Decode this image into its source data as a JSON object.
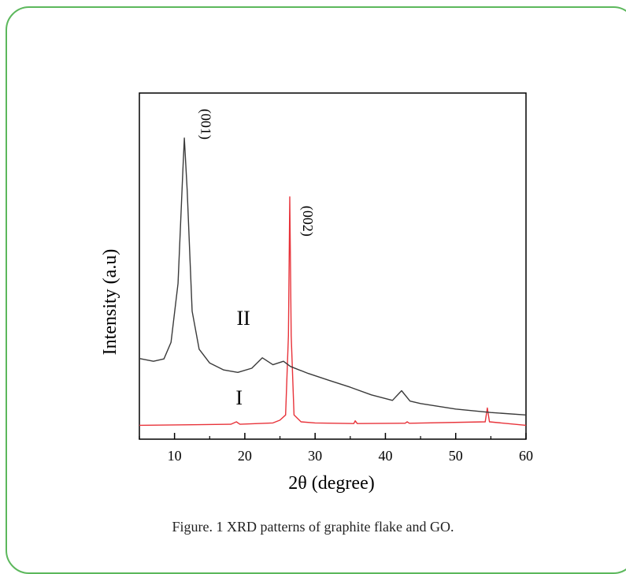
{
  "caption": "Figure. 1 XRD patterns of graphite flake and GO.",
  "colors": {
    "frame": "#5cb85c",
    "series_I": "#e8333a",
    "series_II": "#3a3a3a"
  },
  "chart_data": {
    "type": "line",
    "xlabel": "2θ (degree)",
    "ylabel": "Intensity (a.u)",
    "xlim": [
      5,
      60
    ],
    "xticks": [
      10,
      20,
      30,
      40,
      50,
      60
    ],
    "yticks_shown": false,
    "grid": false,
    "annotations": [
      {
        "text": "(001)",
        "x": 13.8,
        "y": 0.91
      },
      {
        "text": "(002)",
        "x": 28.3,
        "y": 0.63
      }
    ],
    "series": [
      {
        "name": "I",
        "label_at": {
          "x": 19.2,
          "y": 0.1
        },
        "points": [
          [
            5,
            0.04
          ],
          [
            18,
            0.043
          ],
          [
            18.8,
            0.05
          ],
          [
            19.3,
            0.043
          ],
          [
            24,
            0.047
          ],
          [
            25,
            0.055
          ],
          [
            25.8,
            0.07
          ],
          [
            26.2,
            0.3
          ],
          [
            26.4,
            0.7
          ],
          [
            26.6,
            0.3
          ],
          [
            27,
            0.07
          ],
          [
            28,
            0.05
          ],
          [
            30,
            0.047
          ],
          [
            35.5,
            0.045
          ],
          [
            35.7,
            0.053
          ],
          [
            36,
            0.045
          ],
          [
            42.8,
            0.046
          ],
          [
            43.1,
            0.05
          ],
          [
            43.4,
            0.046
          ],
          [
            54.2,
            0.05
          ],
          [
            54.5,
            0.09
          ],
          [
            54.8,
            0.05
          ],
          [
            60,
            0.04
          ]
        ]
      },
      {
        "name": "II",
        "label_at": {
          "x": 19.8,
          "y": 0.33
        },
        "points": [
          [
            5,
            0.233
          ],
          [
            7,
            0.225
          ],
          [
            8.5,
            0.232
          ],
          [
            9.5,
            0.28
          ],
          [
            10.5,
            0.45
          ],
          [
            11.2,
            0.78
          ],
          [
            11.4,
            0.87
          ],
          [
            11.8,
            0.72
          ],
          [
            12.5,
            0.37
          ],
          [
            13.5,
            0.26
          ],
          [
            15,
            0.22
          ],
          [
            17,
            0.2
          ],
          [
            19,
            0.193
          ],
          [
            21,
            0.205
          ],
          [
            22.5,
            0.235
          ],
          [
            24,
            0.215
          ],
          [
            25.5,
            0.225
          ],
          [
            26.5,
            0.21
          ],
          [
            29,
            0.19
          ],
          [
            32,
            0.17
          ],
          [
            35,
            0.15
          ],
          [
            38,
            0.128
          ],
          [
            41,
            0.112
          ],
          [
            42.3,
            0.14
          ],
          [
            43.5,
            0.11
          ],
          [
            45,
            0.103
          ],
          [
            50,
            0.087
          ],
          [
            55,
            0.077
          ],
          [
            60,
            0.07
          ]
        ]
      }
    ]
  }
}
